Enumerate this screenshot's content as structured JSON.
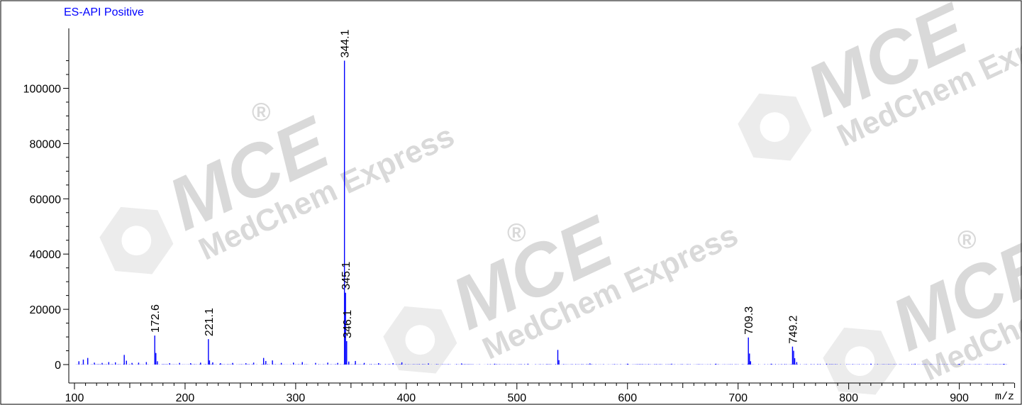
{
  "watermark": {
    "brand": "MCE",
    "company": "MedChem Express",
    "mark": "®",
    "color": "#d9d9d9"
  },
  "chart_data": {
    "type": "bar",
    "title": "ES-API Positive",
    "xlabel": "m/z",
    "ylabel": "",
    "xlim": [
      100,
      950
    ],
    "ylim": [
      -2500,
      122000
    ],
    "x_ticks": [
      100,
      200,
      300,
      400,
      500,
      600,
      700,
      800,
      900
    ],
    "y_ticks": [
      0,
      20000,
      40000,
      60000,
      80000,
      100000
    ],
    "line_color": "#0000ff",
    "grid": false,
    "peaks": [
      {
        "mz": 104,
        "intensity": 1200
      },
      {
        "mz": 108,
        "intensity": 1800
      },
      {
        "mz": 112,
        "intensity": 2400
      },
      {
        "mz": 118,
        "intensity": 700
      },
      {
        "mz": 125,
        "intensity": 600
      },
      {
        "mz": 131,
        "intensity": 900
      },
      {
        "mz": 137,
        "intensity": 800
      },
      {
        "mz": 145,
        "intensity": 3500
      },
      {
        "mz": 147,
        "intensity": 1400
      },
      {
        "mz": 152,
        "intensity": 600
      },
      {
        "mz": 158,
        "intensity": 700
      },
      {
        "mz": 165,
        "intensity": 900
      },
      {
        "mz": 172.6,
        "intensity": 10500,
        "label": "172.6"
      },
      {
        "mz": 173.6,
        "intensity": 4200
      },
      {
        "mz": 175,
        "intensity": 1200
      },
      {
        "mz": 186,
        "intensity": 500
      },
      {
        "mz": 195,
        "intensity": 600
      },
      {
        "mz": 205,
        "intensity": 500
      },
      {
        "mz": 214,
        "intensity": 700
      },
      {
        "mz": 221.1,
        "intensity": 9200,
        "label": "221.1"
      },
      {
        "mz": 222.1,
        "intensity": 1500
      },
      {
        "mz": 225,
        "intensity": 800
      },
      {
        "mz": 232,
        "intensity": 500
      },
      {
        "mz": 243,
        "intensity": 600
      },
      {
        "mz": 255,
        "intensity": 500
      },
      {
        "mz": 262,
        "intensity": 700
      },
      {
        "mz": 271,
        "intensity": 2400
      },
      {
        "mz": 273,
        "intensity": 1300
      },
      {
        "mz": 279,
        "intensity": 1500
      },
      {
        "mz": 287,
        "intensity": 600
      },
      {
        "mz": 298,
        "intensity": 700
      },
      {
        "mz": 306,
        "intensity": 900
      },
      {
        "mz": 318,
        "intensity": 600
      },
      {
        "mz": 329,
        "intensity": 700
      },
      {
        "mz": 338,
        "intensity": 600
      },
      {
        "mz": 344.1,
        "intensity": 110000,
        "label": "344.1"
      },
      {
        "mz": 345.1,
        "intensity": 26000,
        "label": "345.1"
      },
      {
        "mz": 346.1,
        "intensity": 8500,
        "label": "346.1"
      },
      {
        "mz": 348,
        "intensity": 1100
      },
      {
        "mz": 354,
        "intensity": 1300
      },
      {
        "mz": 362,
        "intensity": 600
      },
      {
        "mz": 375,
        "intensity": 500
      },
      {
        "mz": 388,
        "intensity": 500
      },
      {
        "mz": 396,
        "intensity": 800
      },
      {
        "mz": 420,
        "intensity": 400
      },
      {
        "mz": 450,
        "intensity": 400
      },
      {
        "mz": 480,
        "intensity": 300
      },
      {
        "mz": 510,
        "intensity": 300
      },
      {
        "mz": 537,
        "intensity": 5300
      },
      {
        "mz": 538,
        "intensity": 1600
      },
      {
        "mz": 566,
        "intensity": 400
      },
      {
        "mz": 600,
        "intensity": 300
      },
      {
        "mz": 640,
        "intensity": 300
      },
      {
        "mz": 680,
        "intensity": 300
      },
      {
        "mz": 709.3,
        "intensity": 9800,
        "label": "709.3"
      },
      {
        "mz": 710.3,
        "intensity": 4000
      },
      {
        "mz": 711.3,
        "intensity": 1200
      },
      {
        "mz": 730,
        "intensity": 300
      },
      {
        "mz": 749.2,
        "intensity": 6500,
        "label": "749.2"
      },
      {
        "mz": 750.2,
        "intensity": 5000
      },
      {
        "mz": 751.2,
        "intensity": 2300
      },
      {
        "mz": 753,
        "intensity": 900
      },
      {
        "mz": 780,
        "intensity": 300
      },
      {
        "mz": 820,
        "intensity": 300
      },
      {
        "mz": 860,
        "intensity": 300
      },
      {
        "mz": 900,
        "intensity": 250
      },
      {
        "mz": 940,
        "intensity": 250
      }
    ]
  }
}
